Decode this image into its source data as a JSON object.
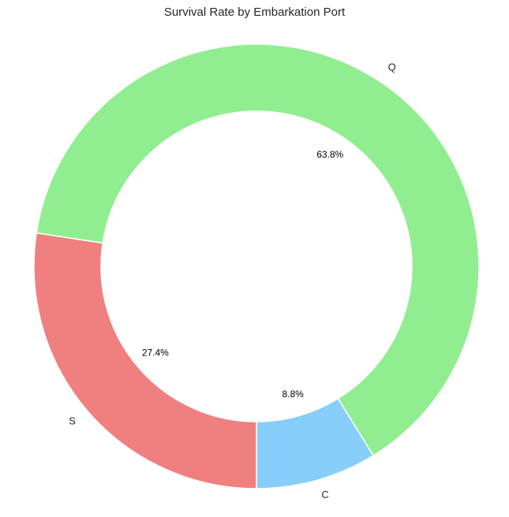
{
  "chart_data": {
    "type": "pie",
    "variant": "donut",
    "title": "Survival Rate by Embarkation Port",
    "categories": [
      "C",
      "Q",
      "S"
    ],
    "values": [
      8.8,
      63.8,
      27.4
    ],
    "percent_labels": [
      "8.8%",
      "63.8%",
      "27.4%"
    ],
    "colors": [
      "#87CEFA",
      "#90EE90",
      "#F08080"
    ],
    "start_angle_deg": 270,
    "direction": "counterclockwise",
    "edge_color": "#ffffff",
    "legend": "none"
  }
}
